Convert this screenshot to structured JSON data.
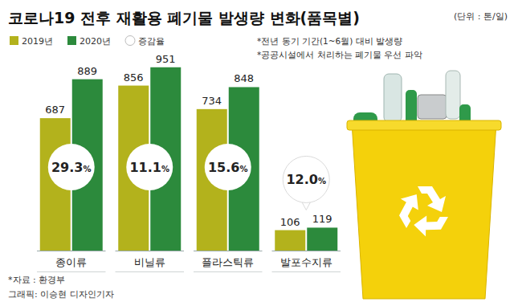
{
  "chart_data": {
    "type": "bar",
    "title": "코로나19 전후 재활용 폐기물 발생량 변화(품목별)",
    "annotations": [
      "(단위 : 톤/일)",
      "*전년 동기 기간(1~6월) 대비 발생량",
      "*공공시설에서 처리하는 폐기물 우선 파악",
      "*자료 : 환경부",
      "그래픽: 이승현 디자인기자"
    ],
    "categories": [
      "종이류",
      "비닐류",
      "플라스틱류",
      "발포수지류"
    ],
    "series": [
      {
        "name": "2019년",
        "color": "#b3b21c",
        "values": [
          687,
          856,
          734,
          106
        ]
      },
      {
        "name": "2020년",
        "color": "#2c8a3c",
        "values": [
          889,
          951,
          848,
          119
        ]
      }
    ],
    "change": {
      "name": "증감율",
      "values": [
        29.3,
        11.1,
        15.6,
        12.0
      ],
      "value_labels": [
        "29.3%",
        "11.1%",
        "15.6%",
        "12.0%"
      ]
    },
    "ylim": [
      0,
      1000
    ],
    "data_labels": true,
    "tick_labels": false,
    "grid": false
  }
}
